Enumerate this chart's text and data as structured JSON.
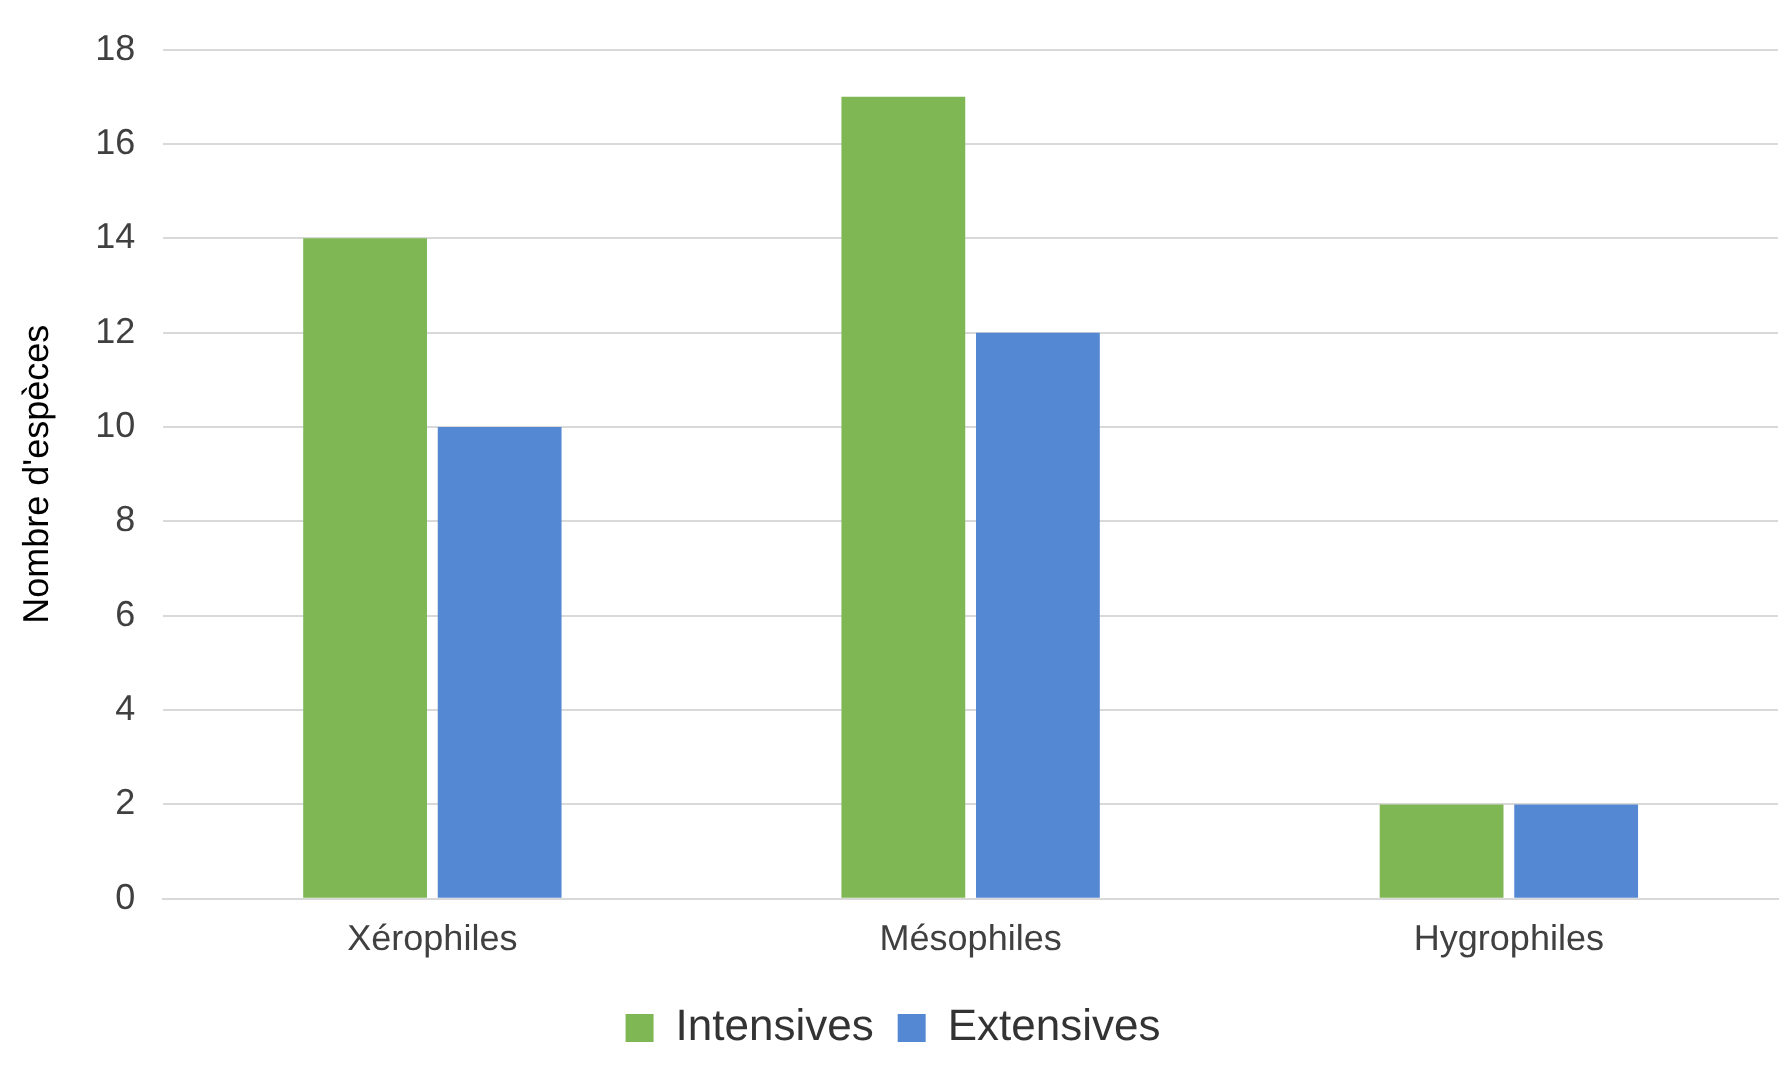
{
  "chart_data": {
    "type": "bar",
    "ylabel": "Nombre d'espèces",
    "categories": [
      "Xérophiles",
      "Mésophiles",
      "Hygrophiles"
    ],
    "series": [
      {
        "name": "Intensives",
        "color": "#7fb755",
        "values": [
          14,
          17,
          2
        ]
      },
      {
        "name": "Extensives",
        "color": "#5588d3",
        "values": [
          10,
          12,
          2
        ]
      }
    ],
    "ylim": [
      0,
      18
    ],
    "yticks": [
      0,
      2,
      4,
      6,
      8,
      10,
      12,
      14,
      16,
      18
    ],
    "grid": "y",
    "legend": "bottom"
  }
}
